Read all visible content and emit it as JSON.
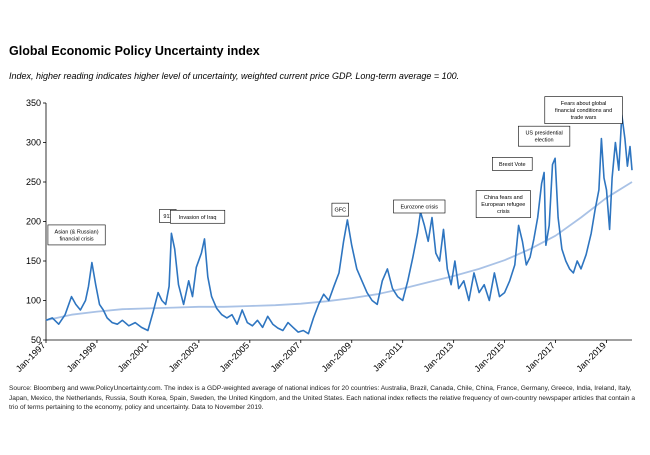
{
  "title": "Global Economic Policy Uncertainty index",
  "subtitle": "Index, higher reading indicates higher level of uncertainty, weighted current price GDP. Long-term average = 100.",
  "source": "Source: Bloomberg and www.PolicyUncertainty.com. The index is a GDP-weighted average of national indices for 20 countries: Australia, Brazil, Canada, Chile, China, France, Germany, Greece, India, Ireland, Italy, Japan, Mexico, the Netherlands, Russia, South Korea, Spain, Sweden, the United Kingdom, and the United States. Each national index reflects the relative frequency of own-country newspaper articles that contain a trio of terms pertaining to the economy, policy and uncertainty. Data to November 2019.",
  "colors": {
    "index": "#2e75c0",
    "trend": "#a9c2e6",
    "axis": "#000000"
  },
  "chart_data": {
    "type": "line",
    "x_range": [
      1997.0,
      2020.0
    ],
    "ylim": [
      50,
      350
    ],
    "yticks": [
      50,
      100,
      150,
      200,
      250,
      300,
      350
    ],
    "xticks": [
      {
        "x": 1997.0,
        "label": "Jan-1997"
      },
      {
        "x": 1999.0,
        "label": "Jan-1999"
      },
      {
        "x": 2001.0,
        "label": "Jan-2001"
      },
      {
        "x": 2003.0,
        "label": "Jan-2003"
      },
      {
        "x": 2005.0,
        "label": "Jan-2005"
      },
      {
        "x": 2007.0,
        "label": "Jan-2007"
      },
      {
        "x": 2009.0,
        "label": "Jan-2009"
      },
      {
        "x": 2011.0,
        "label": "Jan-2011"
      },
      {
        "x": 2013.0,
        "label": "Jan-2013"
      },
      {
        "x": 2015.0,
        "label": "Jan-2015"
      },
      {
        "x": 2017.0,
        "label": "Jan-2017"
      },
      {
        "x": 2019.0,
        "label": "Jan-2019"
      }
    ],
    "series": [
      {
        "name": "",
        "points": [
          [
            1997.0,
            75
          ],
          [
            1997.25,
            78
          ],
          [
            1997.5,
            70
          ],
          [
            1997.75,
            82
          ],
          [
            1998.0,
            105
          ],
          [
            1998.17,
            95
          ],
          [
            1998.35,
            88
          ],
          [
            1998.55,
            100
          ],
          [
            1998.67,
            118
          ],
          [
            1998.8,
            148
          ],
          [
            1998.95,
            120
          ],
          [
            1999.1,
            95
          ],
          [
            1999.25,
            88
          ],
          [
            1999.4,
            78
          ],
          [
            1999.6,
            72
          ],
          [
            1999.8,
            70
          ],
          [
            2000.0,
            75
          ],
          [
            2000.25,
            68
          ],
          [
            2000.5,
            72
          ],
          [
            2000.75,
            66
          ],
          [
            2001.0,
            62
          ],
          [
            2001.2,
            85
          ],
          [
            2001.4,
            110
          ],
          [
            2001.55,
            100
          ],
          [
            2001.7,
            95
          ],
          [
            2001.83,
            118
          ],
          [
            2001.92,
            185
          ],
          [
            2002.05,
            165
          ],
          [
            2002.2,
            120
          ],
          [
            2002.4,
            95
          ],
          [
            2002.6,
            125
          ],
          [
            2002.75,
            105
          ],
          [
            2002.9,
            142
          ],
          [
            2003.1,
            160
          ],
          [
            2003.22,
            178
          ],
          [
            2003.35,
            130
          ],
          [
            2003.5,
            105
          ],
          [
            2003.7,
            90
          ],
          [
            2003.9,
            82
          ],
          [
            2004.1,
            78
          ],
          [
            2004.3,
            82
          ],
          [
            2004.5,
            70
          ],
          [
            2004.7,
            88
          ],
          [
            2004.9,
            72
          ],
          [
            2005.1,
            68
          ],
          [
            2005.3,
            75
          ],
          [
            2005.5,
            66
          ],
          [
            2005.7,
            80
          ],
          [
            2005.9,
            70
          ],
          [
            2006.1,
            65
          ],
          [
            2006.3,
            62
          ],
          [
            2006.5,
            72
          ],
          [
            2006.7,
            66
          ],
          [
            2006.9,
            60
          ],
          [
            2007.1,
            62
          ],
          [
            2007.3,
            58
          ],
          [
            2007.5,
            78
          ],
          [
            2007.7,
            95
          ],
          [
            2007.9,
            108
          ],
          [
            2008.1,
            100
          ],
          [
            2008.3,
            118
          ],
          [
            2008.5,
            135
          ],
          [
            2008.68,
            175
          ],
          [
            2008.83,
            202
          ],
          [
            2009.0,
            170
          ],
          [
            2009.2,
            140
          ],
          [
            2009.4,
            125
          ],
          [
            2009.6,
            110
          ],
          [
            2009.8,
            100
          ],
          [
            2010.0,
            95
          ],
          [
            2010.2,
            125
          ],
          [
            2010.4,
            140
          ],
          [
            2010.6,
            115
          ],
          [
            2010.8,
            105
          ],
          [
            2011.0,
            100
          ],
          [
            2011.2,
            125
          ],
          [
            2011.4,
            155
          ],
          [
            2011.58,
            185
          ],
          [
            2011.7,
            212
          ],
          [
            2011.85,
            195
          ],
          [
            2012.0,
            175
          ],
          [
            2012.15,
            205
          ],
          [
            2012.3,
            160
          ],
          [
            2012.45,
            150
          ],
          [
            2012.6,
            190
          ],
          [
            2012.75,
            140
          ],
          [
            2012.9,
            120
          ],
          [
            2013.05,
            150
          ],
          [
            2013.2,
            115
          ],
          [
            2013.4,
            125
          ],
          [
            2013.6,
            100
          ],
          [
            2013.8,
            135
          ],
          [
            2014.0,
            110
          ],
          [
            2014.2,
            120
          ],
          [
            2014.4,
            100
          ],
          [
            2014.6,
            135
          ],
          [
            2014.8,
            105
          ],
          [
            2015.0,
            110
          ],
          [
            2015.2,
            125
          ],
          [
            2015.4,
            145
          ],
          [
            2015.55,
            195
          ],
          [
            2015.7,
            175
          ],
          [
            2015.85,
            145
          ],
          [
            2016.0,
            155
          ],
          [
            2016.15,
            178
          ],
          [
            2016.3,
            205
          ],
          [
            2016.45,
            248
          ],
          [
            2016.55,
            262
          ],
          [
            2016.62,
            170
          ],
          [
            2016.75,
            195
          ],
          [
            2016.88,
            272
          ],
          [
            2016.98,
            280
          ],
          [
            2017.1,
            205
          ],
          [
            2017.25,
            165
          ],
          [
            2017.4,
            150
          ],
          [
            2017.55,
            140
          ],
          [
            2017.7,
            135
          ],
          [
            2017.85,
            150
          ],
          [
            2018.0,
            140
          ],
          [
            2018.2,
            158
          ],
          [
            2018.4,
            185
          ],
          [
            2018.55,
            215
          ],
          [
            2018.7,
            240
          ],
          [
            2018.8,
            305
          ],
          [
            2018.9,
            255
          ],
          [
            2019.0,
            240
          ],
          [
            2019.12,
            190
          ],
          [
            2019.22,
            255
          ],
          [
            2019.35,
            300
          ],
          [
            2019.48,
            265
          ],
          [
            2019.6,
            335
          ],
          [
            2019.72,
            305
          ],
          [
            2019.82,
            270
          ],
          [
            2019.92,
            295
          ],
          [
            2020.0,
            265
          ]
        ]
      },
      {
        "name": "",
        "points": [
          [
            1997.0,
            75
          ],
          [
            1998.0,
            82
          ],
          [
            1999.0,
            86
          ],
          [
            2000.0,
            89
          ],
          [
            2001.0,
            90
          ],
          [
            2002.0,
            91
          ],
          [
            2003.0,
            92
          ],
          [
            2004.0,
            92
          ],
          [
            2005.0,
            93
          ],
          [
            2006.0,
            94
          ],
          [
            2007.0,
            96
          ],
          [
            2008.0,
            99
          ],
          [
            2009.0,
            103
          ],
          [
            2010.0,
            108
          ],
          [
            2011.0,
            115
          ],
          [
            2012.0,
            123
          ],
          [
            2013.0,
            131
          ],
          [
            2014.0,
            140
          ],
          [
            2015.0,
            151
          ],
          [
            2016.0,
            165
          ],
          [
            2017.0,
            182
          ],
          [
            2018.0,
            205
          ],
          [
            2019.0,
            230
          ],
          [
            2020.0,
            250
          ]
        ]
      }
    ],
    "annotations": [
      {
        "label": [
          "Asian (& Russian)",
          "financial crisis"
        ],
        "x": 1998.2,
        "y": 183
      },
      {
        "label": [
          "911"
        ],
        "x": 2001.78,
        "y": 207
      },
      {
        "label": [
          "Invasion of Iraq"
        ],
        "x": 2002.95,
        "y": 206
      },
      {
        "label": [
          "GFC"
        ],
        "x": 2008.55,
        "y": 215
      },
      {
        "label": [
          "Eurozone crisis"
        ],
        "x": 2011.65,
        "y": 219
      },
      {
        "label": [
          "China fears and",
          "European refugee",
          "crisis"
        ],
        "x": 2014.95,
        "y": 222
      },
      {
        "label": [
          "Brexit Vote"
        ],
        "x": 2015.3,
        "y": 273
      },
      {
        "label": [
          "US presidential",
          "election"
        ],
        "x": 2016.55,
        "y": 308
      },
      {
        "label": [
          "Fears about global",
          "financial conditions and",
          "trade wars"
        ],
        "x": 2018.1,
        "y": 341
      }
    ]
  }
}
